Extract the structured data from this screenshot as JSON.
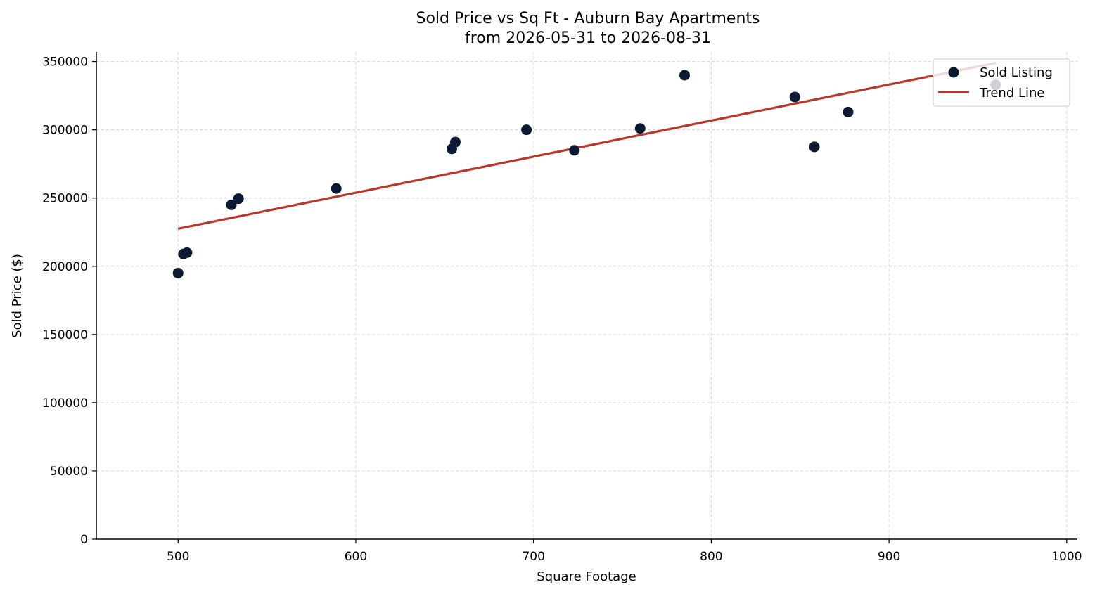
{
  "chart_data": {
    "type": "scatter",
    "title": "Sold Price vs Sq Ft - Auburn Bay Apartments",
    "subtitle": "from 2026-05-31 to 2026-08-31",
    "xlabel": "Square Footage",
    "ylabel": "Sold Price ($)",
    "xlim": [
      454,
      1006
    ],
    "ylim": [
      0,
      357000
    ],
    "xticks": [
      500,
      600,
      700,
      800,
      900,
      1000
    ],
    "yticks": [
      0,
      50000,
      100000,
      150000,
      200000,
      250000,
      300000,
      350000
    ],
    "xtick_labels": [
      "500",
      "600",
      "700",
      "800",
      "900",
      "1000"
    ],
    "ytick_labels": [
      "0",
      "50000",
      "100000",
      "150000",
      "200000",
      "250000",
      "300000",
      "350000"
    ],
    "grid": true,
    "legend_position": "top-right",
    "colors": {
      "points": "#0b1a33",
      "trend": "#b53a2c"
    },
    "series": [
      {
        "name": "Sold Listing",
        "type": "scatter",
        "points": [
          {
            "x": 500,
            "y": 195000
          },
          {
            "x": 503,
            "y": 209000
          },
          {
            "x": 505,
            "y": 210000
          },
          {
            "x": 530,
            "y": 245000
          },
          {
            "x": 534,
            "y": 249500
          },
          {
            "x": 589,
            "y": 257000
          },
          {
            "x": 654,
            "y": 286000
          },
          {
            "x": 656,
            "y": 291000
          },
          {
            "x": 696,
            "y": 300000
          },
          {
            "x": 723,
            "y": 285000
          },
          {
            "x": 760,
            "y": 301000
          },
          {
            "x": 785,
            "y": 340000
          },
          {
            "x": 847,
            "y": 324000
          },
          {
            "x": 858,
            "y": 287500
          },
          {
            "x": 877,
            "y": 313000
          },
          {
            "x": 960,
            "y": 333000
          }
        ]
      },
      {
        "name": "Trend Line",
        "type": "line",
        "points": [
          {
            "x": 500,
            "y": 227500
          },
          {
            "x": 960,
            "y": 349000
          }
        ]
      }
    ]
  }
}
